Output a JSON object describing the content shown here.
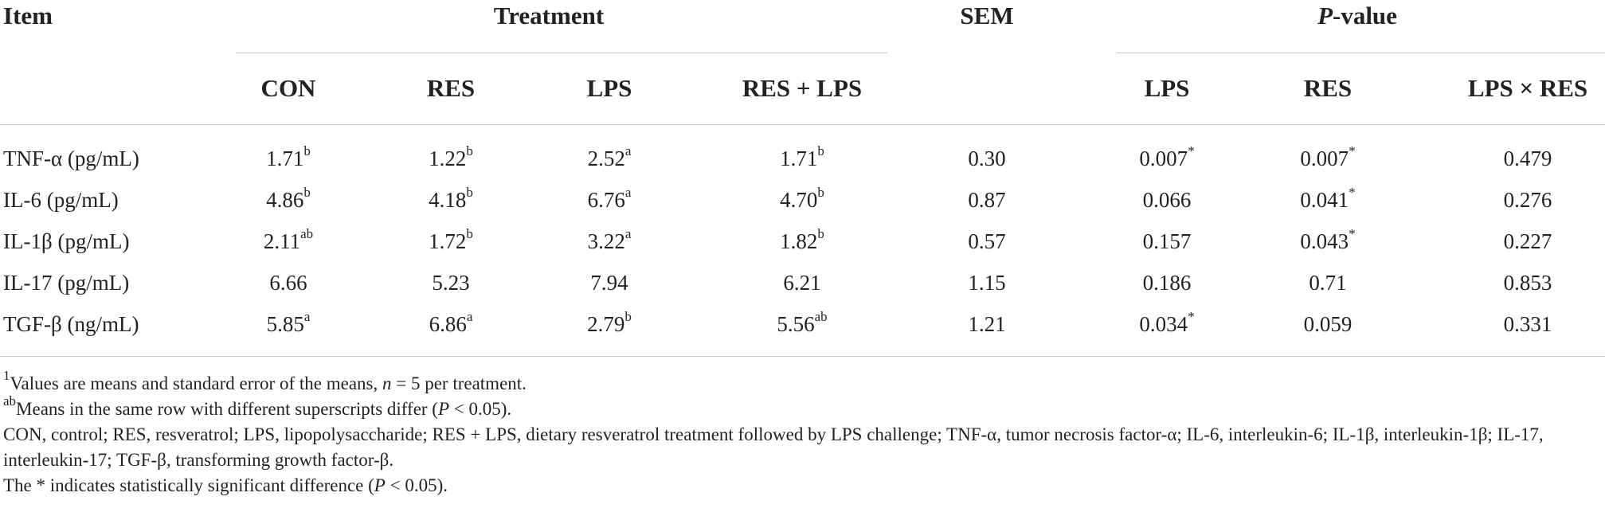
{
  "header": {
    "item": "Item",
    "treatment": "Treatment",
    "sem": "SEM",
    "pvalue_italic": "P",
    "pvalue_rest": "-value",
    "treatment_cols": [
      "CON",
      "RES",
      "LPS",
      "RES + LPS"
    ],
    "pvalue_cols": [
      "LPS",
      "RES",
      "LPS × RES"
    ]
  },
  "rows": [
    {
      "label": "TNF-α (pg/mL)",
      "treatments": [
        {
          "v": "1.71",
          "s": "b"
        },
        {
          "v": "1.22",
          "s": "b"
        },
        {
          "v": "2.52",
          "s": "a"
        },
        {
          "v": "1.71",
          "s": "b"
        }
      ],
      "sem": "0.30",
      "pvalues": [
        {
          "v": "0.007",
          "s": "*"
        },
        {
          "v": "0.007",
          "s": "*"
        },
        {
          "v": "0.479",
          "s": ""
        }
      ]
    },
    {
      "label": "IL-6 (pg/mL)",
      "treatments": [
        {
          "v": "4.86",
          "s": "b"
        },
        {
          "v": "4.18",
          "s": "b"
        },
        {
          "v": "6.76",
          "s": "a"
        },
        {
          "v": "4.70",
          "s": "b"
        }
      ],
      "sem": "0.87",
      "pvalues": [
        {
          "v": "0.066",
          "s": ""
        },
        {
          "v": "0.041",
          "s": "*"
        },
        {
          "v": "0.276",
          "s": ""
        }
      ]
    },
    {
      "label": "IL-1β (pg/mL)",
      "treatments": [
        {
          "v": "2.11",
          "s": "ab"
        },
        {
          "v": "1.72",
          "s": "b"
        },
        {
          "v": "3.22",
          "s": "a"
        },
        {
          "v": "1.82",
          "s": "b"
        }
      ],
      "sem": "0.57",
      "pvalues": [
        {
          "v": "0.157",
          "s": ""
        },
        {
          "v": "0.043",
          "s": "*"
        },
        {
          "v": "0.227",
          "s": ""
        }
      ]
    },
    {
      "label": "IL-17 (pg/mL)",
      "treatments": [
        {
          "v": "6.66",
          "s": ""
        },
        {
          "v": "5.23",
          "s": ""
        },
        {
          "v": "7.94",
          "s": ""
        },
        {
          "v": "6.21",
          "s": ""
        }
      ],
      "sem": "1.15",
      "pvalues": [
        {
          "v": "0.186",
          "s": ""
        },
        {
          "v": "0.71",
          "s": ""
        },
        {
          "v": "0.853",
          "s": ""
        }
      ]
    },
    {
      "label": "TGF-β (ng/mL)",
      "treatments": [
        {
          "v": "5.85",
          "s": "a"
        },
        {
          "v": "6.86",
          "s": "a"
        },
        {
          "v": "2.79",
          "s": "b"
        },
        {
          "v": "5.56",
          "s": "ab"
        }
      ],
      "sem": "1.21",
      "pvalues": [
        {
          "v": "0.034",
          "s": "*"
        },
        {
          "v": "0.059",
          "s": ""
        },
        {
          "v": "0.331",
          "s": ""
        }
      ]
    }
  ],
  "notes": {
    "n1_sup": "1",
    "n1_text": "Values are means and standard error of the means, ",
    "n1_italic": "n",
    "n1_tail": " = 5 per treatment.",
    "n2_sup": "ab",
    "n2_text": "Means in the same row with different superscripts differ (",
    "n2_italic": "P",
    "n2_tail": " < 0.05).",
    "n3_text": "CON, control; RES, resveratrol; LPS, lipopolysaccharide; RES + LPS, dietary resveratrol treatment followed by LPS challenge; TNF-α, tumor necrosis factor-α; IL-6, interleukin-6; IL-1β, interleukin-1β; IL-17, interleukin-17; TGF-β, transforming growth factor-β.",
    "n4_text": "The * indicates statistically significant difference (",
    "n4_italic": "P",
    "n4_tail": " < 0.05)."
  }
}
